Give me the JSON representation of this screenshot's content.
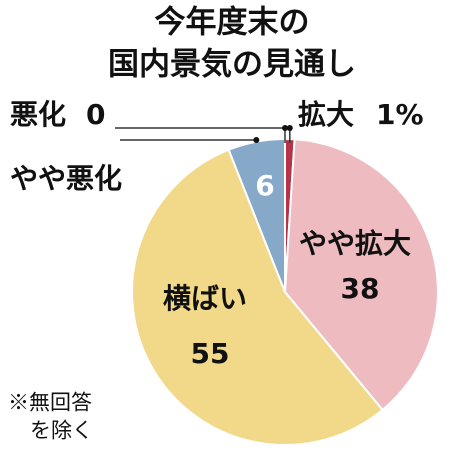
{
  "chart_data": {
    "type": "pie",
    "title_lines": [
      "今年度末の",
      "国内景気の見通し"
    ],
    "categories": [
      "拡大",
      "やや拡大",
      "横ばい",
      "やや悪化",
      "悪化"
    ],
    "values": [
      1,
      38,
      55,
      6,
      0
    ],
    "value_labels": [
      "1%",
      "38",
      "55",
      "6",
      "0"
    ],
    "colors": [
      "#b5344a",
      "#eebcc0",
      "#f2d98a",
      "#86a9c9",
      "#6b7f99"
    ],
    "note_lines": [
      "※無回答",
      "を除く"
    ]
  }
}
